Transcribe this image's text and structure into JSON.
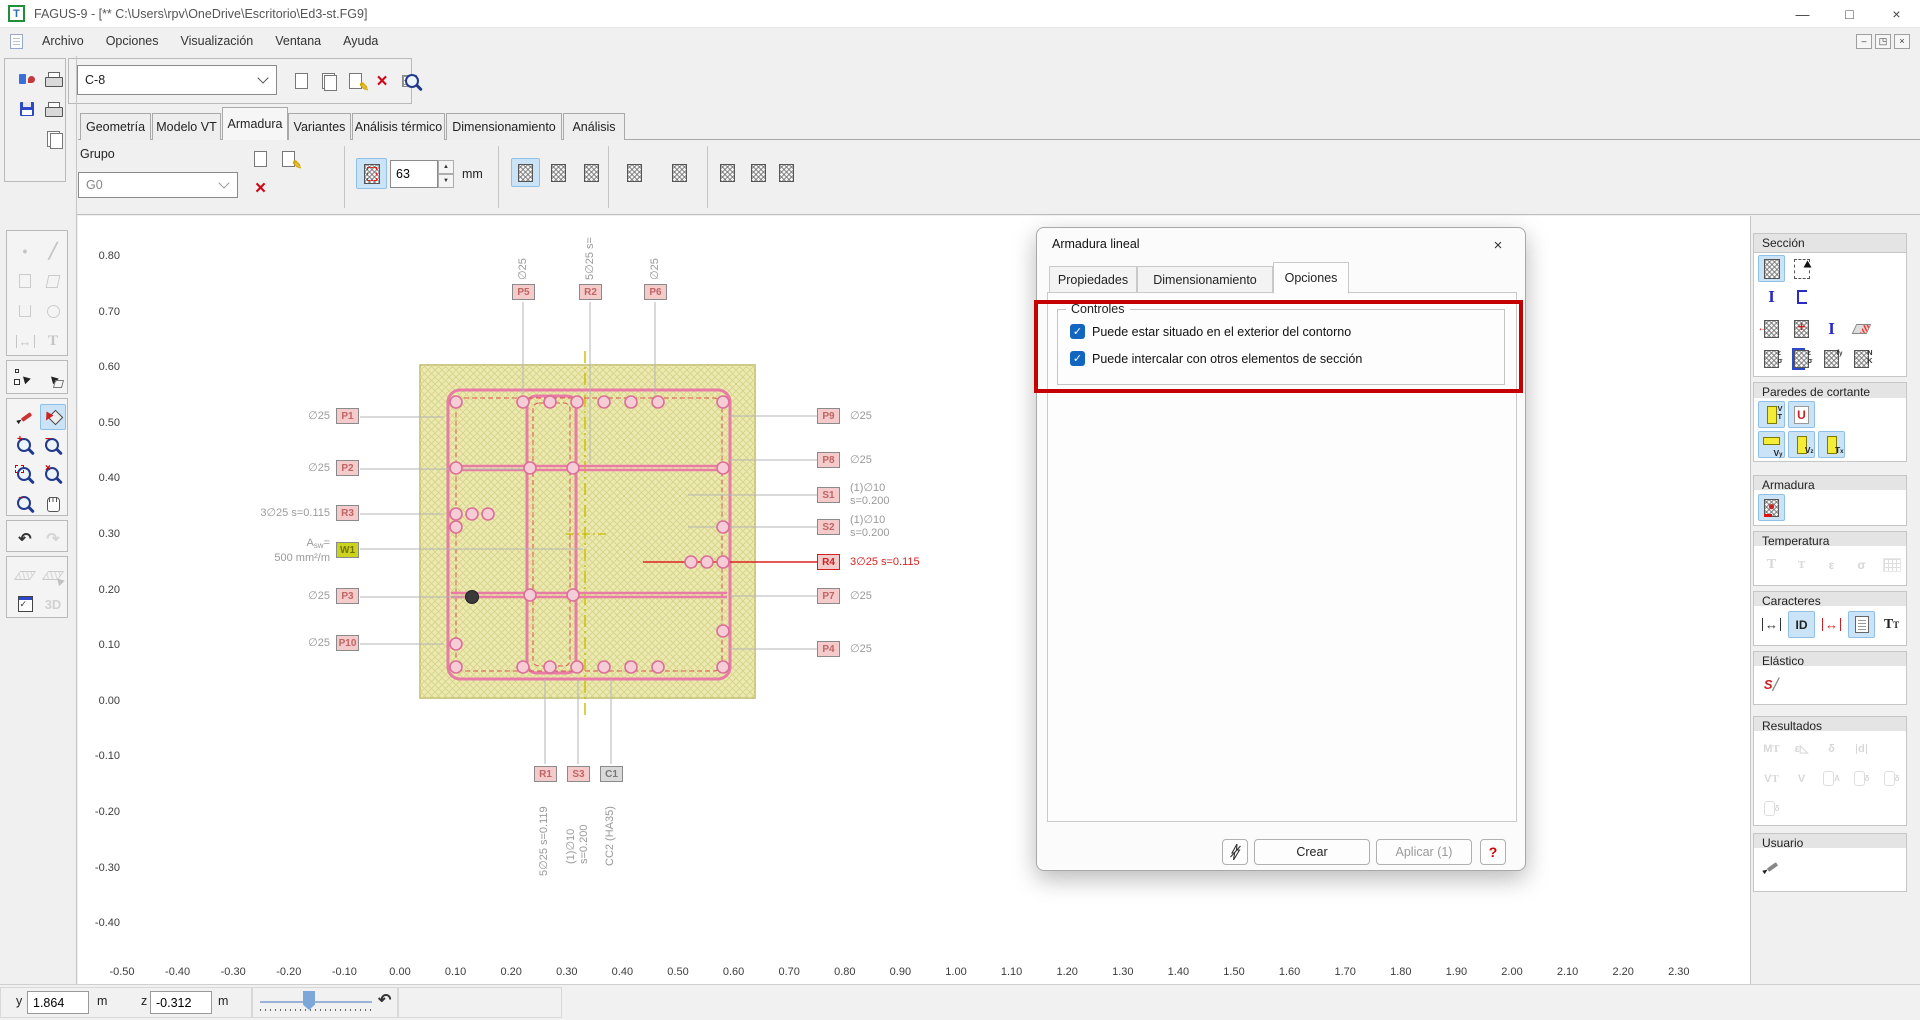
{
  "window": {
    "title": "FAGUS-9 - [** C:\\Users\\rpv\\OneDrive\\Escritorio\\Ed3-st.FG9]"
  },
  "menubar": {
    "items": [
      "Archivo",
      "Opciones",
      "Visualización",
      "Ventana",
      "Ayuda"
    ]
  },
  "toolbar": {
    "section_value": "C-8",
    "left_panel_icons": [
      "app-settings",
      "print",
      "save",
      "print-setup",
      "copy-pages"
    ],
    "buttons": [
      {
        "name": "new-section-button",
        "icon": "new-page"
      },
      {
        "name": "copy-section-button",
        "icon": "copy-page"
      },
      {
        "name": "edit-section-button",
        "icon": "edit-page"
      },
      {
        "name": "delete-section-button",
        "icon": "delete-x"
      },
      {
        "name": "find-section-button",
        "icon": "find-table"
      }
    ]
  },
  "tabs": {
    "items": [
      "Geometría",
      "Modelo VT",
      "Armadura",
      "Variantes",
      "Análisis térmico",
      "Dimensionamiento",
      "Análisis"
    ],
    "active_index": 2
  },
  "ribbon": {
    "group_label": "Grupo",
    "group_value": "G0",
    "group_buttons": [
      {
        "name": "new-rebar-group-button",
        "icon": "new-page"
      },
      {
        "name": "edit-rebar-group-button",
        "icon": "edit-page"
      },
      {
        "name": "delete-rebar-group-button",
        "icon": "delete-x"
      }
    ],
    "diameter_button": "rebar-section",
    "diameter_value": "63",
    "diameter_unit": "mm",
    "shape_buttons": [
      {
        "name": "bar-rectangular-button",
        "icon": "bar-rect",
        "selected": true
      },
      {
        "name": "bar-point-button",
        "icon": "bar-rect-point"
      },
      {
        "name": "bar-circular-button",
        "icon": "bar-circle-point"
      }
    ],
    "tool_buttons": [
      {
        "name": "rebar-printer-button",
        "icon": "rebar-printer"
      },
      {
        "name": "rebar-schedule-button",
        "icon": "rebar-schedule"
      },
      {
        "name": "rebar-move-button",
        "icon": "rebar-move"
      },
      {
        "name": "rebar-confirm-button",
        "icon": "rebar-confirm"
      },
      {
        "name": "rebar-report-button",
        "icon": "rebar-report"
      }
    ]
  },
  "toolbox": {
    "groups": [
      {
        "icons": [
          {
            "name": "draw-point",
            "state": "disabled"
          },
          {
            "name": "draw-line",
            "state": "disabled"
          },
          {
            "name": "draw-rect",
            "state": "disabled"
          },
          {
            "name": "draw-polygon",
            "state": "disabled"
          },
          {
            "name": "draw-ushape",
            "state": "disabled"
          },
          {
            "name": "draw-circle",
            "state": "disabled"
          },
          {
            "name": "draw-dimension",
            "state": "disabled"
          },
          {
            "name": "draw-text",
            "state": "disabled"
          }
        ],
        "cols": 2
      },
      {
        "icons": [
          {
            "name": "select-nodes"
          },
          {
            "name": "select-element"
          }
        ],
        "cols": 2
      },
      {
        "icons": [
          {
            "name": "pencil"
          },
          {
            "name": "paint-bucket",
            "state": "selected"
          },
          {
            "name": "zoom-in"
          },
          {
            "name": "zoom-out"
          },
          {
            "name": "zoom-window"
          },
          {
            "name": "zoom-previous"
          },
          {
            "name": "zoom-extents"
          },
          {
            "name": "pan-hand"
          }
        ],
        "cols": 2
      },
      {
        "icons": [
          {
            "name": "undo"
          },
          {
            "name": "redo",
            "state": "disabled"
          }
        ],
        "cols": 2
      },
      {
        "icons": [
          {
            "name": "plane",
            "state": "disabled"
          },
          {
            "name": "plane-select",
            "state": "disabled"
          },
          {
            "name": "display-options"
          },
          {
            "name": "view-3d",
            "state": "disabled"
          }
        ],
        "cols": 2
      }
    ]
  },
  "sidebar": {
    "groups": [
      {
        "title": "Sección",
        "rows": [
          [
            {
              "name": "section-solid",
              "state": "selected"
            },
            {
              "name": "section-outline"
            }
          ],
          [
            {
              "name": "i-profile"
            },
            {
              "name": "c-profile"
            }
          ],
          [
            {
              "name": "section-insert"
            },
            {
              "name": "section-axes"
            },
            {
              "name": "section-shear"
            },
            {
              "name": "section-sheet"
            }
          ],
          [
            {
              "name": "section-strain"
            },
            {
              "name": "section-strain-points"
            },
            {
              "name": "section-fy"
            },
            {
              "name": "section-nk"
            }
          ]
        ]
      },
      {
        "title": "Paredes de cortante",
        "rows": [
          [
            {
              "name": "wall-vt",
              "state": "selected"
            },
            {
              "name": "wall-u",
              "state": "selected"
            }
          ],
          [
            {
              "name": "wall-vy",
              "state": "selected"
            },
            {
              "name": "wall-vz",
              "state": "selected"
            },
            {
              "name": "wall-tx",
              "state": "selected"
            }
          ]
        ]
      },
      {
        "title": "Armadura",
        "rows": [
          [
            {
              "name": "rebar-point",
              "state": "selected"
            }
          ]
        ]
      },
      {
        "title": "Temperatura",
        "rows": [
          [
            {
              "name": "temp-t-profile",
              "state": "disabled"
            },
            {
              "name": "temp-t",
              "state": "disabled"
            },
            {
              "name": "temp-epsilon",
              "state": "disabled"
            },
            {
              "name": "temp-sigma",
              "state": "disabled"
            },
            {
              "name": "temp-table",
              "state": "disabled"
            }
          ]
        ]
      },
      {
        "title": "Caracteres",
        "rows": [
          [
            {
              "name": "char-dimension"
            },
            {
              "name": "char-id",
              "state": "selected"
            },
            {
              "name": "char-dim-red"
            },
            {
              "name": "char-report",
              "state": "selected"
            },
            {
              "name": "char-text"
            }
          ]
        ]
      },
      {
        "title": "Elástico",
        "rows": [
          [
            {
              "name": "elastic-spring"
            }
          ]
        ]
      },
      {
        "title": "Resultados",
        "rows": [
          [
            {
              "name": "result-mt",
              "state": "disabled"
            },
            {
              "name": "result-strain",
              "state": "disabled"
            },
            {
              "name": "result-delta",
              "state": "disabled"
            },
            {
              "name": "result-d",
              "state": "disabled"
            }
          ],
          [
            {
              "name": "result-vt",
              "state": "disabled"
            },
            {
              "name": "result-v",
              "state": "disabled"
            },
            {
              "name": "result-area",
              "state": "disabled"
            },
            {
              "name": "result-delta2",
              "state": "disabled"
            },
            {
              "name": "result-delta3",
              "state": "disabled"
            }
          ],
          [
            {
              "name": "result-delta4",
              "state": "disabled"
            }
          ]
        ]
      },
      {
        "title": "Usuario",
        "rows": [
          [
            {
              "name": "user-pencil"
            }
          ]
        ]
      }
    ]
  },
  "dialog": {
    "title": "Armadura lineal",
    "tabs": [
      "Propiedades",
      "Dimensionamiento",
      "Opciones"
    ],
    "active_tab_index": 2,
    "controls_group": "Controles",
    "checkboxes": [
      {
        "label": "Puede estar situado en el exterior del contorno",
        "checked": true
      },
      {
        "label": "Puede intercalar con otros elementos de sección",
        "checked": true
      }
    ],
    "create_button": "Crear",
    "apply_button": "Aplicar (1)",
    "help_button": "?"
  },
  "canvas": {
    "x_ticks": [
      "-0.50",
      "-0.40",
      "-0.30",
      "-0.20",
      "-0.10",
      "0.00",
      "0.10",
      "0.20",
      "0.30",
      "0.40",
      "0.50",
      "0.60",
      "0.70",
      "0.80",
      "0.90",
      "1.00",
      "1.10",
      "1.20",
      "1.30",
      "1.40",
      "1.50",
      "1.60",
      "1.70",
      "1.80",
      "1.90",
      "2.00",
      "2.10",
      "2.20",
      "2.30"
    ],
    "y_ticks": [
      "0.80",
      "0.70",
      "0.60",
      "0.50",
      "0.40",
      "0.30",
      "0.20",
      "0.10",
      "0.00",
      "-0.10",
      "-0.20",
      "-0.30",
      "-0.40"
    ],
    "top_labels": [
      {
        "tag": "P5",
        "text": "∅25"
      },
      {
        "tag": "R2",
        "text": "5∅25 s="
      },
      {
        "tag": "P6",
        "text": "∅25"
      }
    ],
    "left_labels": [
      {
        "tag": "P1",
        "text": "∅25"
      },
      {
        "tag": "P2",
        "text": "∅25"
      },
      {
        "tag": "R3",
        "text": "3∅25 s=0.115"
      },
      {
        "tag": "W1",
        "lines": [
          "Asw=",
          "500 mm²/m"
        ],
        "tag_style": "yellow"
      },
      {
        "tag": "P3",
        "text": "∅25"
      },
      {
        "tag": "P10",
        "text": "∅25"
      }
    ],
    "right_labels": [
      {
        "tag": "P9",
        "text": "∅25"
      },
      {
        "tag": "P8",
        "text": "∅25"
      },
      {
        "tag": "S1",
        "lines": [
          "(1)∅10",
          "s=0.200"
        ]
      },
      {
        "tag": "S2",
        "lines": [
          "(1)∅10",
          "s=0.200"
        ]
      },
      {
        "tag": "R4",
        "text": "3∅25 s=0.115",
        "color": "red",
        "tag_style": "redt"
      },
      {
        "tag": "P7",
        "text": "∅25"
      },
      {
        "tag": "P4",
        "text": "∅25"
      }
    ],
    "bottom_labels": [
      {
        "tag": "R1",
        "lines": [
          "5∅25 s=0.119"
        ]
      },
      {
        "tag": "S3",
        "lines": [
          "(1)∅10",
          "s=0.200"
        ]
      },
      {
        "tag": "C1",
        "lines": [
          "CC2 (HA35)"
        ],
        "tag_style": "gray"
      }
    ]
  },
  "statusbar": {
    "y_label": "y",
    "y_value": "1.864",
    "y_unit": "m",
    "z_label": "z",
    "z_value": "-0.312",
    "z_unit": "m"
  },
  "colors": {
    "highlight": "#c40000",
    "accent": "#1266c0",
    "rebar": "#e87ca6",
    "concrete_fill": "#eceab0",
    "concrete_hatch": "#d8d58e",
    "tag_bg": "#f4caca",
    "tag_w1": "#ccd31c",
    "selected_tool": "#cbe3f7"
  }
}
